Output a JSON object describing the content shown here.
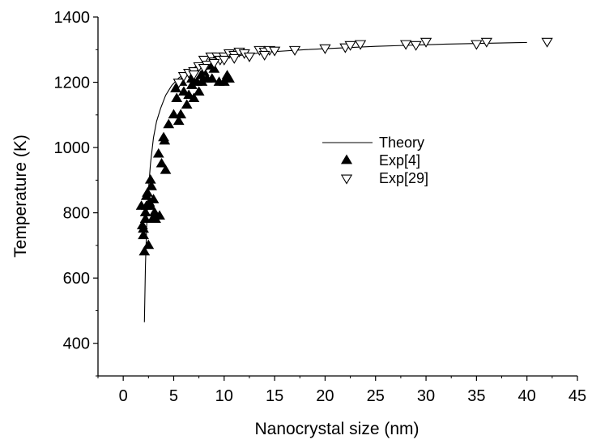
{
  "chart_data": {
    "type": "scatter",
    "xlabel": "Nanocrystal size (nm)",
    "ylabel": "Temperature (K)",
    "xlim": [
      -2.5,
      45
    ],
    "ylim": [
      300,
      1400
    ],
    "xticks": [
      0,
      5,
      10,
      15,
      20,
      25,
      30,
      35,
      40,
      45
    ],
    "yticks": [
      400,
      600,
      800,
      1000,
      1200,
      1400
    ],
    "grid": false,
    "legend_position": "right-middle",
    "series": [
      {
        "name": "Theory",
        "kind": "line",
        "color": "#000000",
        "x": [
          2.1,
          2.2,
          2.35,
          2.5,
          2.7,
          3.0,
          3.3,
          3.7,
          4.2,
          4.8,
          5.5,
          6.5,
          7.5,
          9,
          11,
          14,
          18,
          25,
          32,
          40
        ],
        "y": [
          465,
          640,
          780,
          870,
          950,
          1030,
          1080,
          1120,
          1160,
          1190,
          1213,
          1236,
          1253,
          1266,
          1280,
          1292,
          1300,
          1310,
          1317,
          1322
        ]
      },
      {
        "name": "Exp[4]",
        "kind": "markers",
        "marker": "triangle-up-filled",
        "color": "#000000",
        "x": [
          1.8,
          1.9,
          2.0,
          2.1,
          2.2,
          2.3,
          2.5,
          2.6,
          2.7,
          2.8,
          2.9,
          3.0,
          3.2,
          3.5,
          3.6,
          3.8,
          4.0,
          4.2,
          4.5,
          5.0,
          5.2,
          5.3,
          5.5,
          5.7,
          6.0,
          6.3,
          6.5,
          6.8,
          7.0,
          7.3,
          7.5,
          7.8,
          8.0,
          8.3,
          8.5,
          8.8,
          9.0,
          9.5,
          10.0,
          10.3,
          10.5,
          2.2,
          2.4,
          2.7,
          3.1,
          2.0,
          2.3,
          4.1,
          5.8,
          6.8,
          7.7
        ],
        "y": [
          820,
          760,
          730,
          680,
          780,
          850,
          700,
          830,
          900,
          880,
          780,
          840,
          780,
          980,
          790,
          950,
          1030,
          930,
          1070,
          1100,
          1180,
          1150,
          1080,
          1100,
          1170,
          1130,
          1160,
          1210,
          1150,
          1200,
          1170,
          1200,
          1230,
          1210,
          1250,
          1210,
          1240,
          1200,
          1200,
          1220,
          1210,
          800,
          860,
          820,
          800,
          750,
          820,
          1020,
          1200,
          1190,
          1220
        ]
      },
      {
        "name": "Exp[29]",
        "kind": "markers",
        "marker": "triangle-down-open",
        "color": "#000000",
        "x": [
          5.5,
          6.0,
          6.5,
          7.0,
          7.5,
          8.0,
          8.3,
          8.7,
          9.0,
          9.3,
          9.6,
          10.0,
          10.5,
          11.0,
          11.5,
          12.0,
          13.5,
          14.0,
          14.5,
          15.0,
          17.0,
          20.0,
          22.0,
          22.5,
          23.5,
          28.0,
          29.0,
          30.0,
          35.0,
          36.0,
          42.0,
          8.0,
          9.0,
          11.0,
          12.5,
          14.0,
          7.0,
          10.0
        ],
        "y": [
          1200,
          1220,
          1230,
          1235,
          1250,
          1270,
          1255,
          1280,
          1265,
          1280,
          1270,
          1280,
          1290,
          1285,
          1295,
          1290,
          1300,
          1295,
          1300,
          1298,
          1300,
          1305,
          1308,
          1315,
          1318,
          1318,
          1315,
          1325,
          1318,
          1325,
          1325,
          1245,
          1260,
          1275,
          1280,
          1285,
          1225,
          1270
        ]
      }
    ]
  }
}
